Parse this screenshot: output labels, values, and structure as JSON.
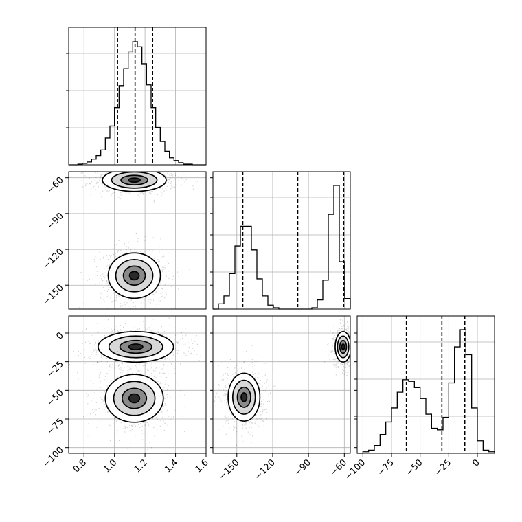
{
  "chart_data": {
    "type": "corner",
    "colors": {
      "ink": "#000000",
      "grid": "#b0b0b0",
      "background": "#ffffff"
    },
    "grid": true,
    "parameters": [
      {
        "range": [
          0.7,
          1.6
        ],
        "quantiles": [
          1.02,
          1.135,
          1.25
        ]
      },
      {
        "range": [
          -170,
          -55
        ],
        "quantiles": [
          -145,
          -99,
          -60.5
        ]
      },
      {
        "range": [
          -105,
          15
        ],
        "quantiles": [
          -62,
          -31,
          -11
        ]
      }
    ],
    "tick_labels": {
      "x": [
        [
          "0.8",
          "1.0",
          "1.2",
          "1.4",
          "1.6"
        ],
        [
          "−150",
          "−120",
          "−90",
          "−60"
        ],
        [
          "−100",
          "−75",
          "−50",
          "−25",
          "0"
        ]
      ],
      "y_row1": [
        "−60",
        "−90",
        "−120",
        "−150"
      ],
      "y_row2": [
        "0",
        "−25",
        "−50",
        "−75",
        "−100"
      ]
    },
    "histograms": [
      {
        "param": 0,
        "type": "step",
        "bin_edges": [
          0.7,
          0.73,
          0.76,
          0.79,
          0.82,
          0.85,
          0.88,
          0.91,
          0.94,
          0.97,
          1.0,
          1.03,
          1.06,
          1.09,
          1.12,
          1.15,
          1.18,
          1.21,
          1.24,
          1.27,
          1.3,
          1.33,
          1.36,
          1.39,
          1.42,
          1.45,
          1.48,
          1.51,
          1.54,
          1.57,
          1.6
        ],
        "counts": [
          0,
          0,
          1,
          2,
          4,
          8,
          13,
          21,
          38,
          55,
          81,
          112,
          136,
          160,
          175,
          167,
          143,
          113,
          81,
          53,
          33,
          19,
          10,
          6,
          3,
          1,
          1,
          0,
          0,
          0
        ]
      },
      {
        "param": 1,
        "type": "step",
        "bin_edges": [
          -170,
          -165.4,
          -160.8,
          -156.2,
          -151.6,
          -147,
          -142.4,
          -137.8,
          -133.2,
          -128.6,
          -124,
          -119.4,
          -114.8,
          -110.2,
          -105.6,
          -101,
          -96.4,
          -91.8,
          -87.2,
          -82.6,
          -78,
          -73.4,
          -68.8,
          -64.2,
          -59.6,
          -55
        ],
        "counts": [
          0,
          4,
          10,
          27,
          48,
          63,
          63,
          45,
          23,
          10,
          3,
          1,
          0,
          0,
          0,
          0,
          0,
          0,
          1,
          7,
          22,
          72,
          94,
          36,
          8
        ]
      },
      {
        "param": 2,
        "type": "step",
        "bin_edges": [
          -105,
          -100,
          -95,
          -90,
          -85,
          -80,
          -75,
          -70,
          -65,
          -60,
          -55,
          -50,
          -45,
          -40,
          -35,
          -30,
          -25,
          -20,
          -15,
          -10,
          -5,
          0,
          5,
          10,
          15
        ],
        "counts": [
          0,
          1,
          2,
          5,
          12,
          20,
          29,
          39,
          47,
          46,
          42,
          35,
          25,
          16,
          15,
          23,
          45,
          68,
          79,
          63,
          29,
          8,
          2,
          1
        ]
      }
    ],
    "panels_2d": [
      {
        "x_param": 0,
        "y_param": 1,
        "modes": [
          {
            "center": [
              1.13,
              -62
            ],
            "sigma": [
              0.11,
              5.0
            ],
            "weight": 0.48
          },
          {
            "center": [
              1.13,
              -142
            ],
            "sigma": [
              0.09,
              10.0
            ],
            "weight": 0.52
          }
        ]
      },
      {
        "x_param": 0,
        "y_param": 2,
        "modes": [
          {
            "center": [
              1.14,
              -12
            ],
            "sigma": [
              0.13,
              7.0
            ],
            "weight": 0.48
          },
          {
            "center": [
              1.13,
              -57
            ],
            "sigma": [
              0.1,
              11.0
            ],
            "weight": 0.52
          }
        ]
      },
      {
        "x_param": 1,
        "y_param": 2,
        "modes": [
          {
            "center": [
              -61,
              -12
            ],
            "sigma": [
              3.5,
              7.0
            ],
            "weight": 0.48
          },
          {
            "center": [
              -144,
              -56
            ],
            "sigma": [
              7.0,
              11.0
            ],
            "weight": 0.52
          }
        ]
      }
    ]
  }
}
